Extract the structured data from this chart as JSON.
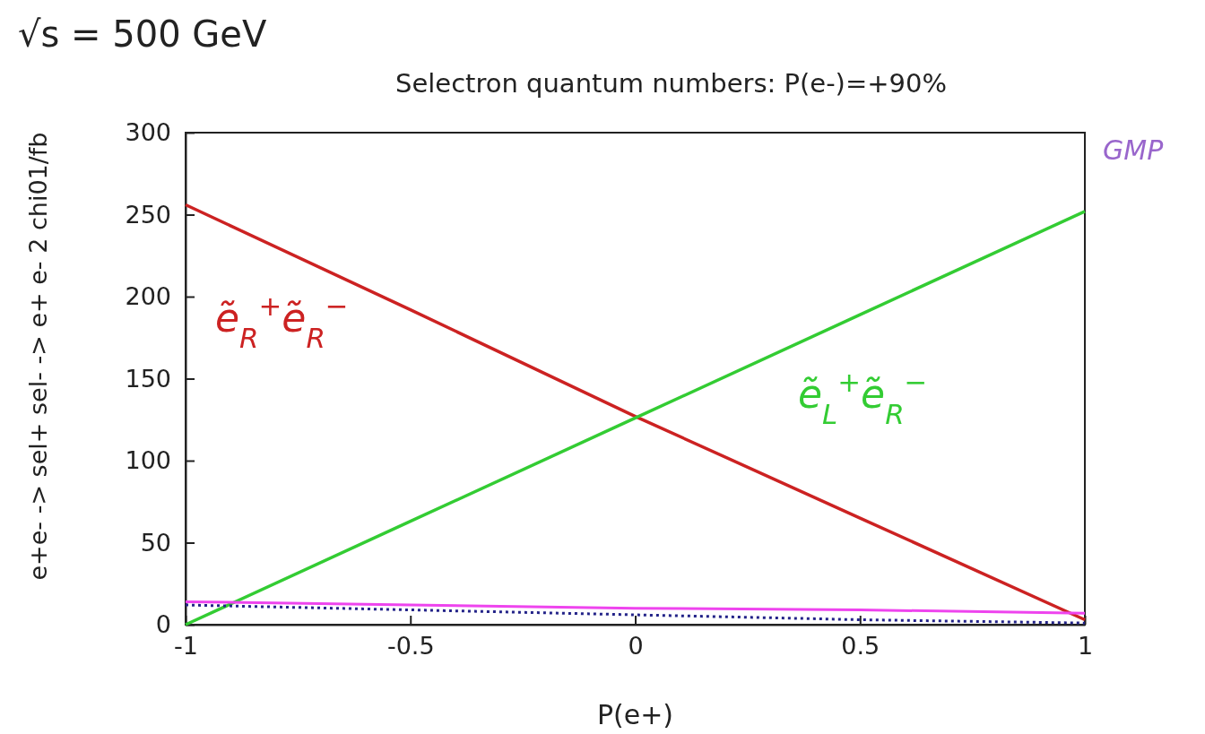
{
  "chart_data": {
    "type": "line",
    "title": "√s = 500 GeV",
    "subtitle": "Selectron quantum numbers: P(e-)=+90%",
    "xlabel": "P(e+)",
    "ylabel": "e+e- -> sel+ sel- -> e+ e- 2 chi01/fb",
    "x": [
      -1,
      -0.5,
      0,
      0.5,
      1
    ],
    "series": [
      {
        "name": "ẽ$_{R}$$^{+}$ẽ$_{R}$$^{−}$",
        "color": "#cc2222",
        "values": [
          256,
          192,
          127,
          65,
          3
        ]
      },
      {
        "name": "ẽ$_{L}$$^{+}$ẽ$_{R}$$^{−}$",
        "color": "#33cc33",
        "values": [
          0,
          63,
          126,
          189,
          252
        ]
      },
      {
        "color": "#ee44ee",
        "values": [
          14,
          12,
          10,
          9,
          7
        ]
      },
      {
        "color": "#222288",
        "values": [
          12,
          9,
          6,
          3,
          1
        ],
        "line_style": "dotted"
      }
    ],
    "annotations": [
      "GMP"
    ],
    "xlim": [
      -1,
      1
    ],
    "xticks": [
      -1,
      -0.5,
      0,
      0.5,
      1
    ],
    "ylim": [
      0,
      300
    ],
    "yticks": [
      0,
      50,
      100,
      150,
      200,
      250,
      300
    ],
    "marker": "none",
    "line_style": "solid"
  }
}
